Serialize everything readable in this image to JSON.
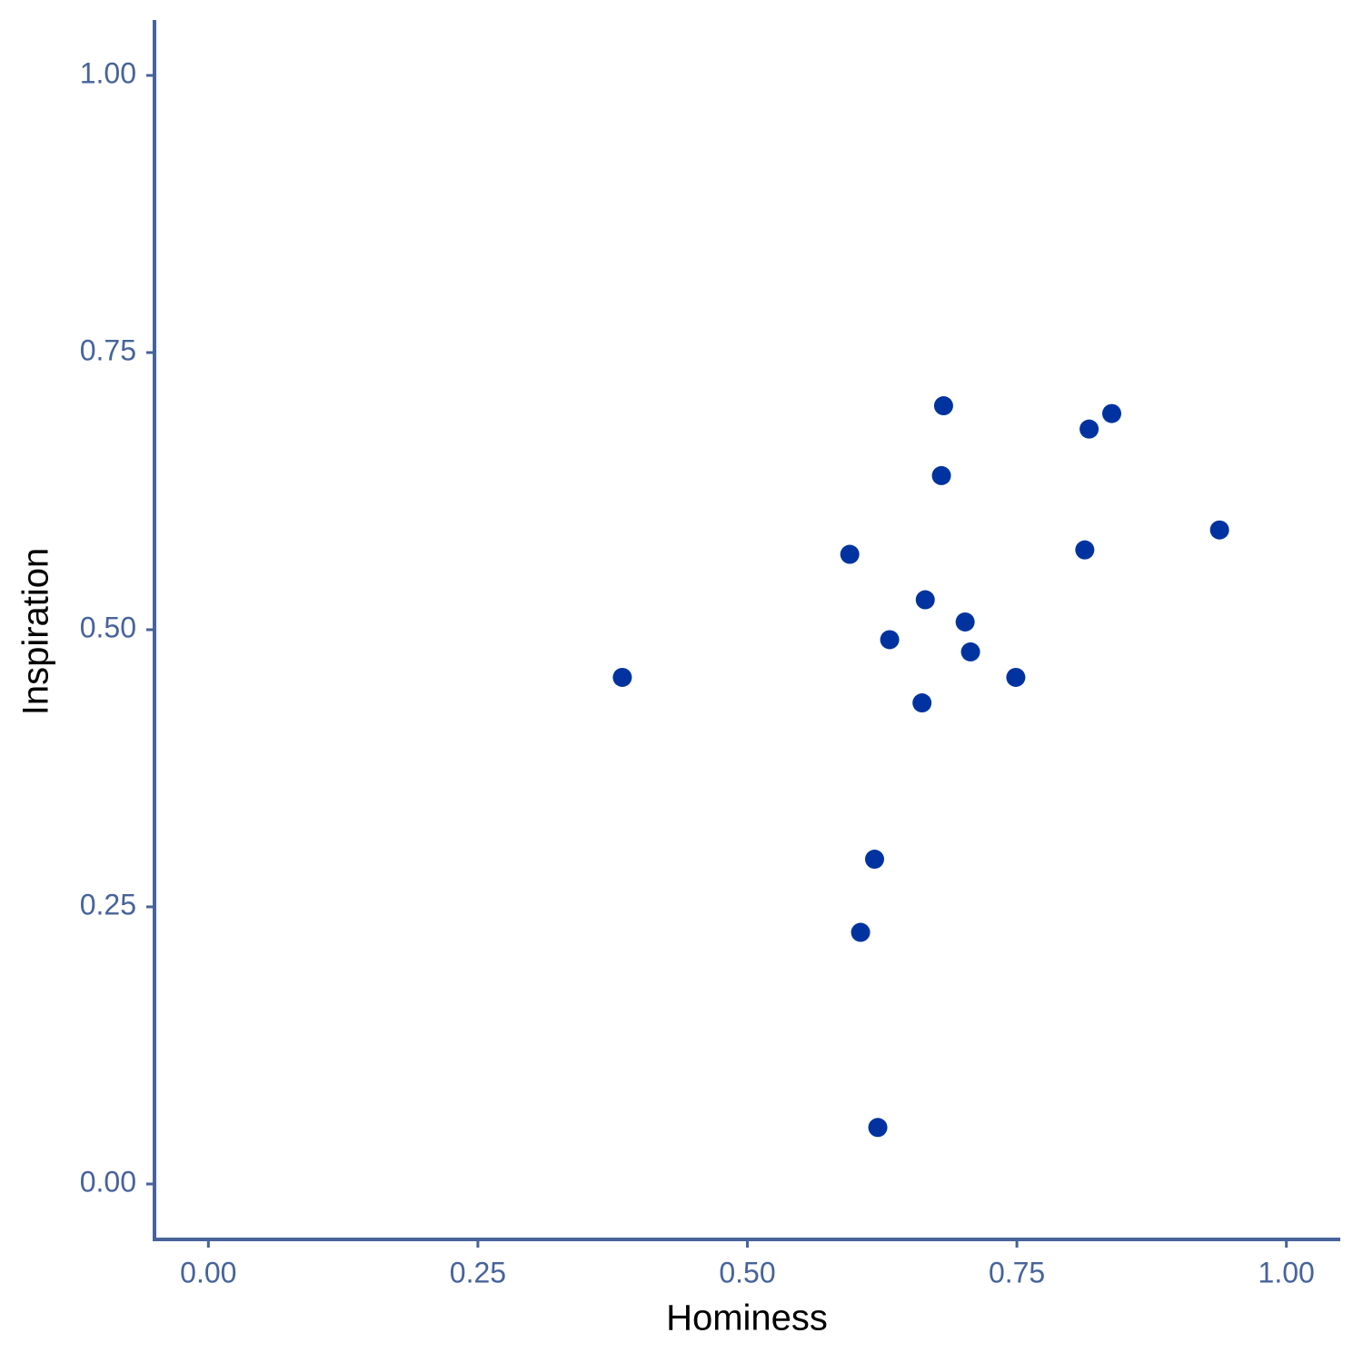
{
  "chart_data": {
    "type": "scatter",
    "x_label": "Hominess",
    "y_label": "Inspiration",
    "color": "#0033a0",
    "axis_color": "#47639a",
    "xlim": [
      -0.05,
      1.05
    ],
    "ylim": [
      -0.05,
      1.05
    ],
    "xticks": [
      {
        "value": 0,
        "label": "0.00"
      },
      {
        "value": 0.25,
        "label": "0.25"
      },
      {
        "value": 0.5,
        "label": "0.50"
      },
      {
        "value": 0.75,
        "label": "0.75"
      },
      {
        "value": 1,
        "label": "1.00"
      }
    ],
    "yticks": [
      {
        "value": 0,
        "label": "0.00"
      },
      {
        "value": 0.25,
        "label": "0.25"
      },
      {
        "value": 0.5,
        "label": "0.50"
      },
      {
        "value": 0.75,
        "label": "0.75"
      },
      {
        "value": 1,
        "label": "1.00"
      }
    ],
    "x": [
      0.384,
      0.682,
      0.838,
      0.817,
      0.68,
      0.938,
      0.595,
      0.813,
      0.665,
      0.702,
      0.632,
      0.707,
      0.749,
      0.662,
      0.618,
      0.605,
      0.621
    ],
    "values": [
      0.457,
      0.702,
      0.695,
      0.681,
      0.639,
      0.59,
      0.568,
      0.572,
      0.527,
      0.507,
      0.491,
      0.48,
      0.457,
      0.434,
      0.293,
      0.227,
      0.051
    ]
  }
}
